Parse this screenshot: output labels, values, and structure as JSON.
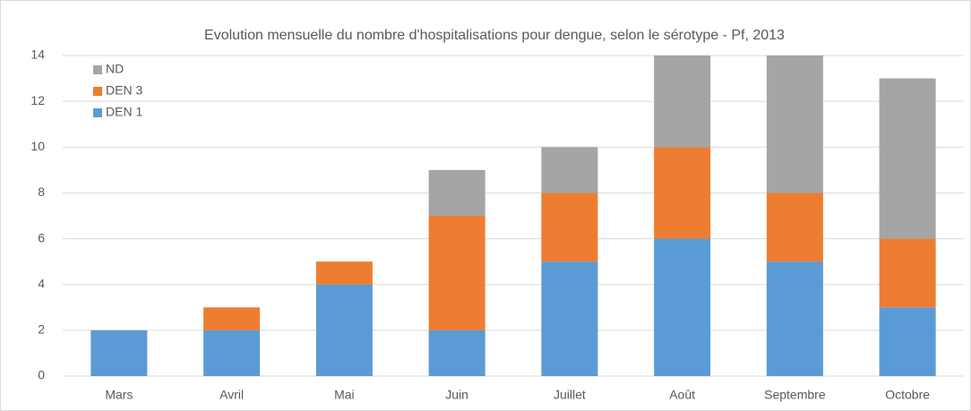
{
  "chart_data": {
    "type": "stacked_bar",
    "title": "Evolution mensuelle du nombre d'hospitalisations pour dengue, selon le sérotype - Pf, 2013",
    "categories": [
      "Mars",
      "Avril",
      "Mai",
      "Juin",
      "Juillet",
      "Août",
      "Septembre",
      "Octobre"
    ],
    "series": [
      {
        "name": "DEN 1",
        "color": "#5b9bd5",
        "values": [
          2,
          2,
          4,
          2,
          5,
          6,
          5,
          3
        ]
      },
      {
        "name": "DEN 3",
        "color": "#ed7d31",
        "values": [
          0,
          1,
          1,
          5,
          3,
          4,
          3,
          3
        ]
      },
      {
        "name": "ND",
        "color": "#a5a5a5",
        "values": [
          0,
          0,
          0,
          2,
          2,
          4,
          6,
          7
        ]
      }
    ],
    "ylim": [
      0,
      14
    ],
    "yticks": [
      0,
      2,
      4,
      6,
      8,
      10,
      12,
      14
    ],
    "grid": true,
    "legend": "top-left"
  }
}
